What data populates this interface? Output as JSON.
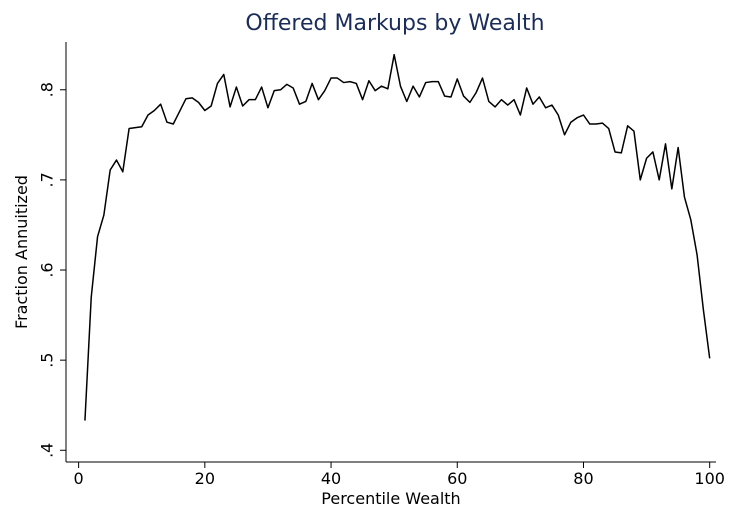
{
  "chart_data": {
    "type": "line",
    "title": "Offered Markups by Wealth",
    "x_label": "Percentile Wealth",
    "y_label": "Fraction Annuitized",
    "x": [
      1,
      2,
      3,
      4,
      5,
      6,
      7,
      8,
      9,
      10,
      11,
      12,
      13,
      14,
      15,
      16,
      17,
      18,
      19,
      20,
      21,
      22,
      23,
      24,
      25,
      26,
      27,
      28,
      29,
      30,
      31,
      32,
      33,
      34,
      35,
      36,
      37,
      38,
      39,
      40,
      41,
      42,
      43,
      44,
      45,
      46,
      47,
      48,
      49,
      50,
      51,
      52,
      53,
      54,
      55,
      56,
      57,
      58,
      59,
      60,
      61,
      62,
      63,
      64,
      65,
      66,
      67,
      68,
      69,
      70,
      71,
      72,
      73,
      74,
      75,
      76,
      77,
      78,
      79,
      80,
      81,
      82,
      83,
      84,
      85,
      86,
      87,
      88,
      89,
      90,
      91,
      92,
      93,
      94,
      95,
      96,
      97,
      98,
      99,
      100
    ],
    "series": [
      {
        "name": "Fraction Annuitized",
        "color": "#000000",
        "values": [
          0.433,
          0.57,
          0.637,
          0.661,
          0.711,
          0.722,
          0.709,
          0.757,
          0.758,
          0.759,
          0.772,
          0.777,
          0.784,
          0.764,
          0.762,
          0.776,
          0.79,
          0.791,
          0.786,
          0.777,
          0.782,
          0.807,
          0.817,
          0.781,
          0.803,
          0.782,
          0.789,
          0.789,
          0.803,
          0.78,
          0.799,
          0.8,
          0.806,
          0.802,
          0.784,
          0.787,
          0.807,
          0.789,
          0.799,
          0.813,
          0.813,
          0.808,
          0.809,
          0.807,
          0.789,
          0.81,
          0.799,
          0.804,
          0.801,
          0.839,
          0.804,
          0.787,
          0.804,
          0.792,
          0.808,
          0.809,
          0.809,
          0.793,
          0.792,
          0.812,
          0.793,
          0.786,
          0.797,
          0.813,
          0.787,
          0.781,
          0.789,
          0.783,
          0.789,
          0.772,
          0.802,
          0.784,
          0.792,
          0.78,
          0.783,
          0.772,
          0.75,
          0.764,
          0.769,
          0.772,
          0.762,
          0.762,
          0.763,
          0.757,
          0.731,
          0.73,
          0.76,
          0.754,
          0.7,
          0.724,
          0.731,
          0.7,
          0.74,
          0.69,
          0.736,
          0.681,
          0.656,
          0.617,
          0.556,
          0.502
        ]
      }
    ],
    "xlim": [
      -2,
      101
    ],
    "ylim": [
      0.387,
      0.853
    ],
    "xticks": [
      0,
      20,
      40,
      60,
      80,
      100
    ],
    "yticks": [
      {
        "value": 0.4,
        "label": ".4"
      },
      {
        "value": 0.5,
        "label": ".5"
      },
      {
        "value": 0.6,
        "label": ".6"
      },
      {
        "value": 0.7,
        "label": ".7"
      },
      {
        "value": 0.8,
        "label": ".8"
      }
    ],
    "title_color": "#1a2d5a"
  }
}
